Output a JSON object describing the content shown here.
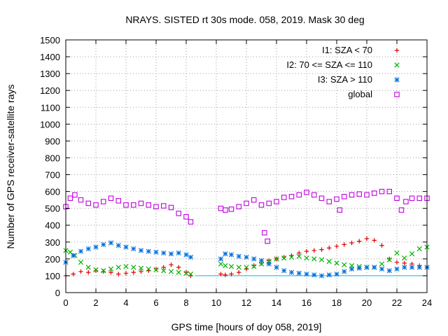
{
  "chart_data": {
    "type": "scatter",
    "title": "NRAYS. SISTED rt 30s mode. 058, 2019. Mask 30 deg",
    "xlabel": "GPS time [hours of doy 058, 2019]",
    "ylabel": "Number of GPS receiver-satellite rays",
    "xlim": [
      0,
      24
    ],
    "ylim": [
      0,
      1500
    ],
    "xticks": [
      "0",
      "2",
      "4",
      "6",
      "8",
      "10",
      "12",
      "14",
      "16",
      "18",
      "20",
      "22",
      "24"
    ],
    "yticks": [
      "0",
      "100",
      "200",
      "300",
      "400",
      "500",
      "600",
      "700",
      "800",
      "900",
      "1000",
      "1100",
      "1200",
      "1300",
      "1400",
      "1500"
    ],
    "grid": true,
    "legend_position": "top-right",
    "reference_line": {
      "y": 100,
      "color": "#00c0e0"
    },
    "series": [
      {
        "name": "I1: SZA < 70",
        "marker": "+",
        "color": "#e00000",
        "x": [
          0,
          0.5,
          1,
          1.5,
          2,
          2.5,
          3,
          3.5,
          4,
          4.5,
          5,
          5.5,
          6,
          6.5,
          7,
          7.5,
          8,
          8.3,
          10.3,
          10.6,
          11,
          11.5,
          12,
          12.5,
          13,
          13.5,
          14,
          14.5,
          15,
          15.5,
          16,
          16.5,
          17,
          17.5,
          18,
          18.5,
          19,
          19.5,
          20,
          20.5,
          21,
          21.5,
          22,
          22.5,
          23,
          23.5,
          24
        ],
        "y": [
          100,
          110,
          125,
          120,
          130,
          125,
          120,
          110,
          115,
          120,
          125,
          130,
          140,
          150,
          165,
          150,
          120,
          100,
          110,
          105,
          110,
          120,
          140,
          160,
          175,
          190,
          200,
          210,
          220,
          235,
          245,
          250,
          255,
          265,
          275,
          285,
          295,
          305,
          320,
          310,
          280,
          200,
          180,
          175,
          170,
          160,
          150
        ]
      },
      {
        "name": "I2: 70 <= SZA <= 110",
        "marker": "x",
        "color": "#00b000",
        "x": [
          0,
          0.3,
          0.6,
          1,
          1.5,
          2,
          2.5,
          3,
          3.5,
          4,
          4.5,
          5,
          5.5,
          6,
          6.5,
          7,
          7.5,
          8,
          8.3,
          10.3,
          10.6,
          11,
          11.5,
          12,
          12.5,
          13,
          13.5,
          14,
          14.5,
          15,
          15.5,
          16,
          16.5,
          17,
          17.5,
          18,
          18.5,
          19,
          19.5,
          20,
          20.5,
          21,
          21.5,
          22,
          22.5,
          23,
          23.5,
          24
        ],
        "y": [
          250,
          240,
          220,
          180,
          150,
          135,
          130,
          140,
          150,
          155,
          150,
          145,
          140,
          135,
          130,
          125,
          120,
          115,
          110,
          170,
          160,
          155,
          150,
          150,
          155,
          170,
          185,
          200,
          205,
          210,
          215,
          205,
          200,
          195,
          185,
          175,
          165,
          160,
          155,
          150,
          150,
          170,
          195,
          235,
          205,
          230,
          260,
          270
        ]
      },
      {
        "name": "I3: SZA > 110",
        "marker": "*",
        "color": "#0070e0",
        "x": [
          0,
          0.5,
          1,
          1.5,
          2,
          2.5,
          3,
          3.5,
          4,
          4.5,
          5,
          5.5,
          6,
          6.5,
          7,
          7.5,
          8,
          8.3,
          10.3,
          10.6,
          11,
          11.5,
          12,
          12.5,
          13,
          13.5,
          14,
          14.5,
          15,
          15.5,
          16,
          16.5,
          17,
          17.5,
          18,
          18.5,
          19,
          19.5,
          20,
          20.5,
          21,
          21.5,
          22,
          22.5,
          23,
          23.5,
          24
        ],
        "y": [
          180,
          220,
          245,
          260,
          270,
          285,
          295,
          280,
          270,
          260,
          250,
          245,
          240,
          235,
          230,
          235,
          225,
          210,
          200,
          230,
          225,
          215,
          210,
          200,
          190,
          170,
          150,
          130,
          120,
          115,
          110,
          105,
          100,
          105,
          110,
          125,
          140,
          145,
          150,
          150,
          140,
          130,
          140,
          150,
          150,
          150,
          150
        ]
      },
      {
        "name": "global",
        "marker": "square",
        "color": "#c000e0",
        "x": [
          0,
          0.3,
          0.6,
          1,
          1.5,
          2,
          2.5,
          3,
          3.5,
          4,
          4.5,
          5,
          5.5,
          6,
          6.5,
          7,
          7.5,
          8,
          8.3,
          10.3,
          10.6,
          11,
          11.5,
          12,
          12.5,
          13,
          13.2,
          13.4,
          13.5,
          14,
          14.5,
          15,
          15.5,
          16,
          16.5,
          17,
          17.5,
          18,
          18.2,
          18.5,
          19,
          19.5,
          20,
          20.5,
          21,
          21.5,
          22,
          22.3,
          22.6,
          23,
          23.5,
          24
        ],
        "y": [
          510,
          560,
          580,
          550,
          530,
          520,
          540,
          560,
          545,
          520,
          520,
          530,
          520,
          510,
          515,
          505,
          470,
          450,
          420,
          500,
          490,
          495,
          510,
          530,
          550,
          520,
          355,
          305,
          530,
          540,
          565,
          570,
          580,
          595,
          580,
          560,
          540,
          555,
          490,
          570,
          580,
          585,
          580,
          590,
          600,
          600,
          560,
          490,
          540,
          560,
          560,
          560
        ]
      }
    ]
  }
}
